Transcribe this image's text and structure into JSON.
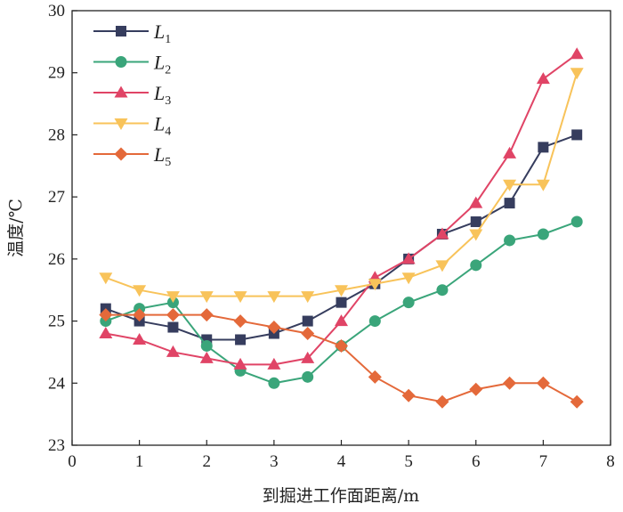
{
  "chart_data": {
    "type": "line",
    "xlabel": "到掘进工作面距离/m",
    "ylabel": "温度/℃",
    "xlim": [
      0,
      8
    ],
    "ylim": [
      23,
      30
    ],
    "xticks": [
      0,
      1,
      2,
      3,
      4,
      5,
      6,
      7,
      8
    ],
    "yticks": [
      23,
      24,
      25,
      26,
      27,
      28,
      29,
      30
    ],
    "grid": false,
    "legend_position": "top-left",
    "x": [
      0.5,
      1,
      1.5,
      2,
      2.5,
      3,
      3.5,
      4,
      4.5,
      5,
      5.5,
      6,
      6.5,
      7,
      7.5
    ],
    "series": [
      {
        "name": "L1",
        "color": "#363d5e",
        "marker": "square",
        "values": [
          25.2,
          25.0,
          24.9,
          24.7,
          24.7,
          24.8,
          25.0,
          25.3,
          25.6,
          26.0,
          26.4,
          26.6,
          26.9,
          27.8,
          28.0
        ]
      },
      {
        "name": "L2",
        "color": "#3aa57a",
        "marker": "circle",
        "values": [
          25.0,
          25.2,
          25.3,
          24.6,
          24.2,
          24.0,
          24.1,
          24.6,
          25.0,
          25.3,
          25.5,
          25.9,
          26.3,
          26.4,
          26.6
        ]
      },
      {
        "name": "L3",
        "color": "#e04466",
        "marker": "triangle-up",
        "values": [
          24.8,
          24.7,
          24.5,
          24.4,
          24.3,
          24.3,
          24.4,
          25.0,
          25.7,
          26.0,
          26.4,
          26.9,
          27.7,
          28.9,
          29.3
        ]
      },
      {
        "name": "L4",
        "color": "#f8c35a",
        "marker": "triangle-down",
        "values": [
          25.7,
          25.5,
          25.4,
          25.4,
          25.4,
          25.4,
          25.4,
          25.5,
          25.6,
          25.7,
          25.9,
          26.4,
          27.2,
          27.2,
          29.0
        ]
      },
      {
        "name": "L5",
        "color": "#e4693a",
        "marker": "diamond",
        "values": [
          25.1,
          25.1,
          25.1,
          25.1,
          25.0,
          24.9,
          24.8,
          24.6,
          24.1,
          23.8,
          23.7,
          23.9,
          24.0,
          24.0,
          23.7
        ]
      }
    ]
  }
}
